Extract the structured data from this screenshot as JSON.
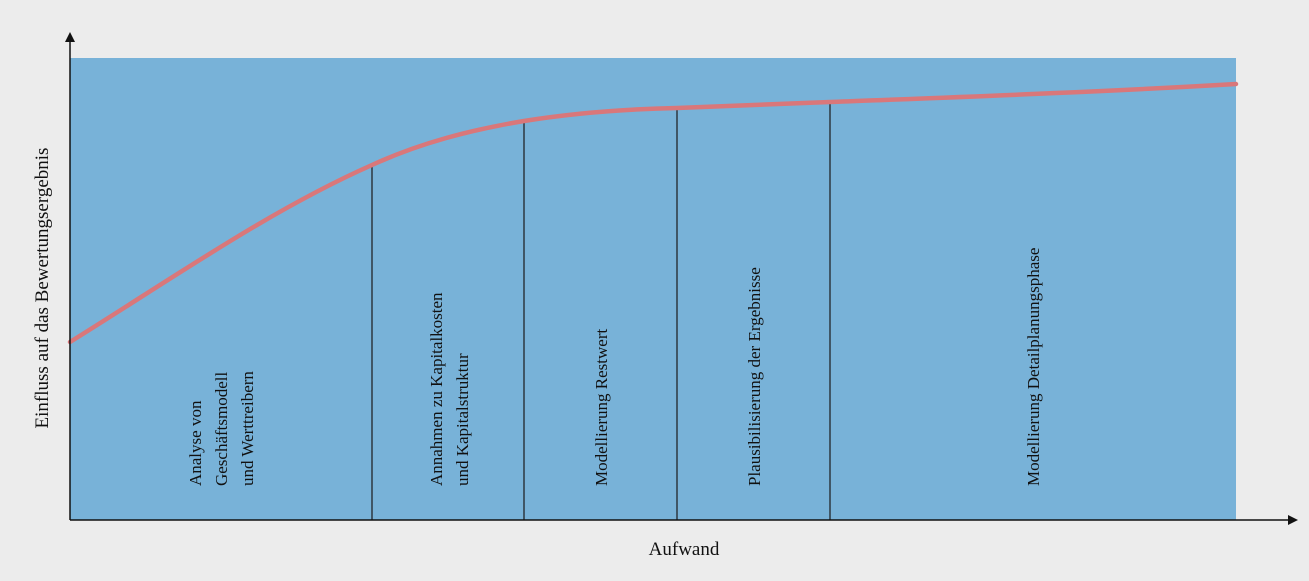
{
  "diagram": {
    "y_axis_label": "Einfluss auf das Bewertungsergebnis",
    "x_axis_label": "Aufwand",
    "colors": {
      "page_background": "#ececec",
      "area_fill": "#78b2d8",
      "curve": "#d9777a",
      "axis": "#111111",
      "divider": "#1a1a1a"
    },
    "phases": [
      {
        "id": "analyse",
        "lines": [
          "Analyse von",
          "Geschäftsmodell",
          "und Werttreibern"
        ]
      },
      {
        "id": "annahmen",
        "lines": [
          "Annahmen zu Kapitalkosten",
          "und Kapitalstruktur"
        ]
      },
      {
        "id": "restwert",
        "lines": [
          "Modellierung Restwert"
        ]
      },
      {
        "id": "plausibilisierung",
        "lines": [
          "Plausibilisierung der Ergebnisse"
        ]
      },
      {
        "id": "detailplanung",
        "lines": [
          "Modellierung Detailplanungsphase"
        ]
      }
    ]
  }
}
